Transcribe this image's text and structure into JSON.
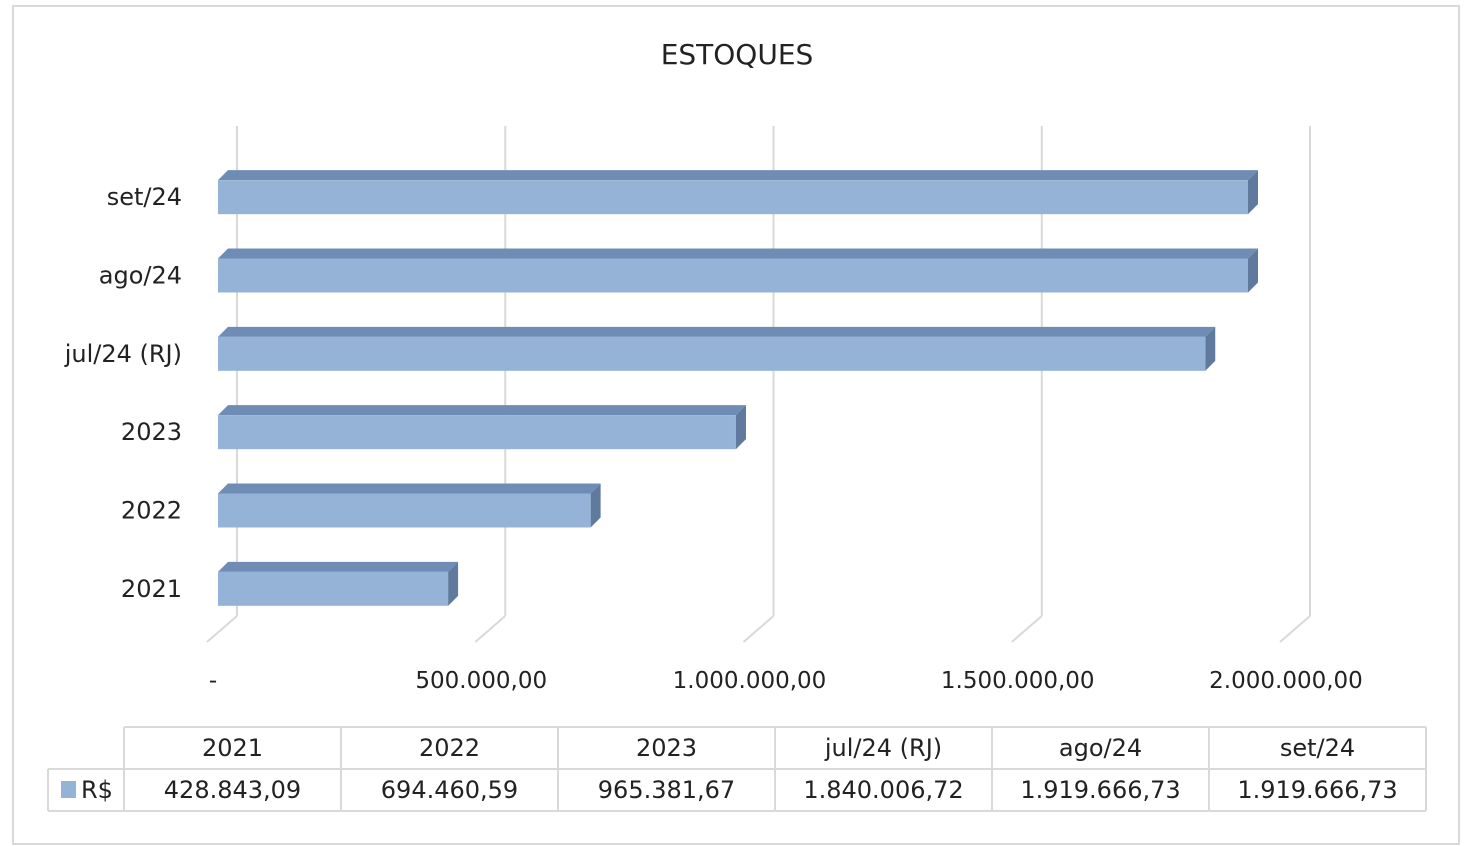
{
  "chart_data": {
    "type": "bar",
    "orientation": "horizontal",
    "style": "3d",
    "title": "ESTOQUES",
    "categories": [
      "2021",
      "2022",
      "2023",
      "jul/24 (RJ)",
      "ago/24",
      "set/24"
    ],
    "series": [
      {
        "name": "R$",
        "values": [
          428843.09,
          694460.59,
          965381.67,
          1840006.72,
          1919666.73,
          1919666.73
        ],
        "value_labels": [
          "428.843,09",
          "694.460,59",
          "965.381,67",
          "1.840.006,72",
          "1.919.666,73",
          "1.919.666,73"
        ],
        "color": "#95b3d7"
      }
    ],
    "xlim": [
      0,
      2000000
    ],
    "x_ticks": [
      0,
      500000,
      1000000,
      1500000,
      2000000
    ],
    "x_tick_labels": [
      "-",
      "500.000,00",
      "1.000.000,00",
      "1.500.000,00",
      "2.000.000,00"
    ],
    "grid": true,
    "data_table": true,
    "legend": "data-table"
  },
  "colors": {
    "bar_face": "#95b3d7",
    "bar_top": "#6f8db4",
    "bar_side": "#5f7a9c",
    "grid": "#d9d9d9",
    "border": "#d9d9d9"
  }
}
